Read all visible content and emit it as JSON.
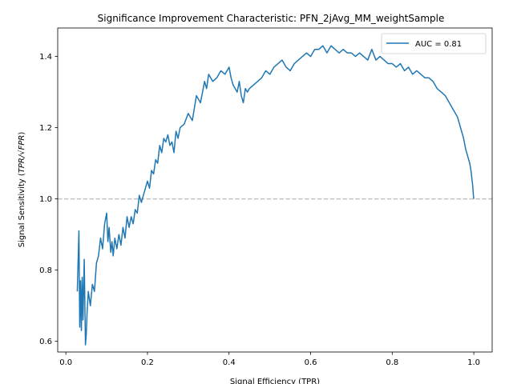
{
  "chart_data": {
    "type": "line",
    "title": "Significance Improvement Characteristic:  PFN_2jAvg_MM_weightSample",
    "xlabel": "Signal Efficiency (TPR)",
    "ylabel_prefix": "Signal Sensitivity (",
    "ylabel_math": "TPR/√FPR",
    "ylabel_suffix": ")",
    "xlim": [
      -0.02,
      1.045
    ],
    "ylim": [
      0.57,
      1.48
    ],
    "xticks": [
      0.0,
      0.2,
      0.4,
      0.6,
      0.8,
      1.0
    ],
    "xtick_labels": [
      "0.0",
      "0.2",
      "0.4",
      "0.6",
      "0.8",
      "1.0"
    ],
    "yticks": [
      0.6,
      0.8,
      1.0,
      1.2,
      1.4
    ],
    "ytick_labels": [
      "0.6",
      "0.8",
      "1.0",
      "1.2",
      "1.4"
    ],
    "reference_line": {
      "y": 1.0,
      "style": "dashed",
      "color": "#c0c0c0"
    },
    "legend": {
      "location": "top-right",
      "entries": [
        "AUC = 0.81"
      ]
    },
    "series": [
      {
        "name": "AUC = 0.81",
        "color": "#1f77b4",
        "x": [
          0.028,
          0.032,
          0.034,
          0.036,
          0.038,
          0.04,
          0.042,
          0.045,
          0.048,
          0.05,
          0.052,
          0.055,
          0.06,
          0.065,
          0.07,
          0.075,
          0.08,
          0.085,
          0.09,
          0.095,
          0.1,
          0.103,
          0.106,
          0.11,
          0.113,
          0.116,
          0.12,
          0.125,
          0.13,
          0.135,
          0.14,
          0.145,
          0.15,
          0.155,
          0.16,
          0.165,
          0.17,
          0.175,
          0.18,
          0.185,
          0.19,
          0.195,
          0.2,
          0.205,
          0.21,
          0.215,
          0.22,
          0.225,
          0.23,
          0.235,
          0.24,
          0.245,
          0.25,
          0.255,
          0.26,
          0.265,
          0.27,
          0.275,
          0.28,
          0.29,
          0.3,
          0.31,
          0.32,
          0.33,
          0.34,
          0.345,
          0.35,
          0.36,
          0.37,
          0.38,
          0.39,
          0.4,
          0.405,
          0.41,
          0.42,
          0.425,
          0.43,
          0.435,
          0.44,
          0.445,
          0.45,
          0.46,
          0.47,
          0.48,
          0.49,
          0.5,
          0.51,
          0.52,
          0.53,
          0.54,
          0.55,
          0.56,
          0.57,
          0.58,
          0.59,
          0.6,
          0.61,
          0.62,
          0.63,
          0.64,
          0.65,
          0.66,
          0.67,
          0.68,
          0.69,
          0.7,
          0.71,
          0.72,
          0.73,
          0.74,
          0.75,
          0.76,
          0.77,
          0.78,
          0.79,
          0.8,
          0.81,
          0.82,
          0.83,
          0.84,
          0.85,
          0.86,
          0.87,
          0.88,
          0.89,
          0.9,
          0.91,
          0.92,
          0.93,
          0.94,
          0.95,
          0.96,
          0.965,
          0.97,
          0.975,
          0.98,
          0.985,
          0.99,
          0.993,
          0.995,
          0.997,
          0.999,
          1.0
        ],
        "y": [
          0.74,
          0.91,
          0.64,
          0.77,
          0.63,
          0.78,
          0.66,
          0.83,
          0.59,
          0.62,
          0.68,
          0.74,
          0.7,
          0.76,
          0.74,
          0.82,
          0.84,
          0.89,
          0.86,
          0.93,
          0.96,
          0.88,
          0.92,
          0.85,
          0.88,
          0.84,
          0.89,
          0.86,
          0.9,
          0.87,
          0.92,
          0.89,
          0.95,
          0.92,
          0.95,
          0.93,
          0.97,
          0.96,
          1.01,
          0.99,
          1.01,
          1.03,
          1.05,
          1.03,
          1.08,
          1.07,
          1.11,
          1.1,
          1.15,
          1.13,
          1.17,
          1.16,
          1.18,
          1.15,
          1.16,
          1.13,
          1.19,
          1.17,
          1.2,
          1.21,
          1.24,
          1.22,
          1.29,
          1.27,
          1.33,
          1.31,
          1.35,
          1.33,
          1.34,
          1.36,
          1.35,
          1.37,
          1.34,
          1.32,
          1.3,
          1.33,
          1.29,
          1.27,
          1.31,
          1.3,
          1.31,
          1.32,
          1.33,
          1.34,
          1.36,
          1.35,
          1.37,
          1.38,
          1.39,
          1.37,
          1.36,
          1.38,
          1.39,
          1.4,
          1.41,
          1.4,
          1.42,
          1.42,
          1.43,
          1.41,
          1.43,
          1.42,
          1.41,
          1.42,
          1.41,
          1.41,
          1.4,
          1.41,
          1.4,
          1.39,
          1.42,
          1.39,
          1.4,
          1.39,
          1.38,
          1.38,
          1.37,
          1.38,
          1.36,
          1.37,
          1.35,
          1.36,
          1.35,
          1.34,
          1.34,
          1.33,
          1.31,
          1.3,
          1.29,
          1.27,
          1.25,
          1.23,
          1.21,
          1.19,
          1.17,
          1.14,
          1.12,
          1.1,
          1.08,
          1.06,
          1.04,
          1.01,
          1.0
        ]
      }
    ]
  }
}
